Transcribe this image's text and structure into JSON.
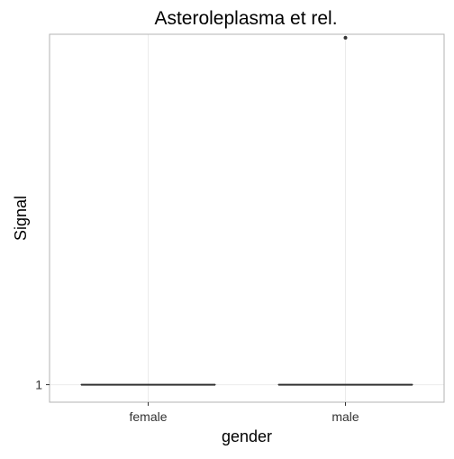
{
  "chart_data": {
    "type": "box",
    "title": "Asteroleplasma et rel.",
    "xlabel": "gender",
    "ylabel": "Signal",
    "categories": [
      "female",
      "male"
    ],
    "y_ticks": [
      {
        "value": 1,
        "label": "1"
      }
    ],
    "ylim": [
      0.95,
      2.0
    ],
    "boxes": [
      {
        "category": "female",
        "min": 1,
        "q1": 1,
        "median": 1,
        "q3": 1,
        "max": 1,
        "outliers": []
      },
      {
        "category": "male",
        "min": 1,
        "q1": 1,
        "median": 1,
        "q3": 1,
        "max": 1,
        "outliers": [
          1.99
        ]
      }
    ],
    "grid": true,
    "colors": {
      "panel_border": "#b3b3b3",
      "grid": "#ebebeb",
      "box_line": "#333333",
      "text": "#000000",
      "tick_text": "#333333"
    }
  }
}
